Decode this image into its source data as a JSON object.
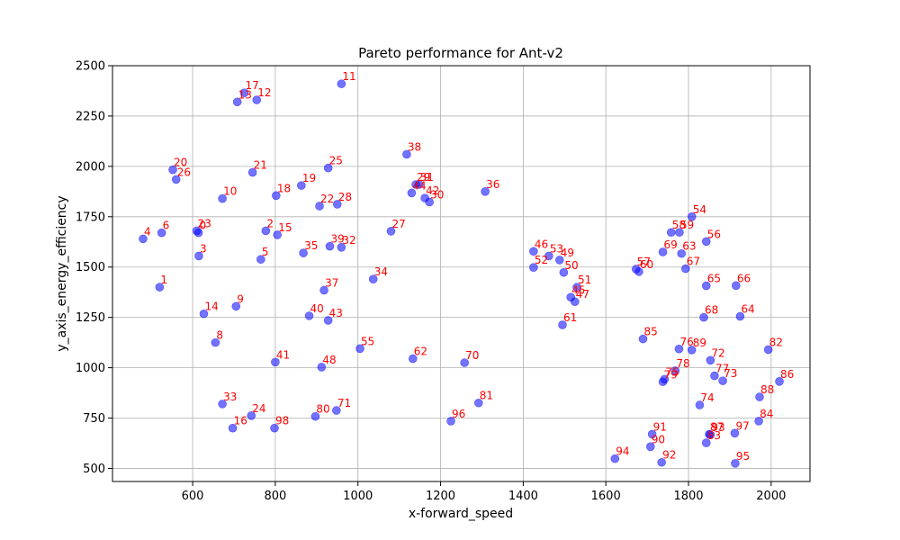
{
  "chart_data": {
    "type": "scatter",
    "title": "Pareto performance for Ant-v2",
    "xlabel": "x-forward_speed",
    "ylabel": "y_axis_energy_efficiency",
    "xlim": [
      406,
      2094
    ],
    "ylim": [
      435,
      2500
    ],
    "xticks": [
      600,
      800,
      1000,
      1200,
      1400,
      1600,
      1800,
      2000
    ],
    "yticks": [
      500,
      750,
      1000,
      1250,
      1500,
      1750,
      2000,
      2250,
      2500
    ],
    "grid": true,
    "point_color": "#0000ff",
    "label_color": "#ff0000",
    "points": [
      {
        "label": "0",
        "x": 614,
        "y": 1670
      },
      {
        "label": "1",
        "x": 520,
        "y": 1400
      },
      {
        "label": "2",
        "x": 777,
        "y": 1680
      },
      {
        "label": "3",
        "x": 615,
        "y": 1555
      },
      {
        "label": "4",
        "x": 480,
        "y": 1640
      },
      {
        "label": "5",
        "x": 765,
        "y": 1538
      },
      {
        "label": "6",
        "x": 525,
        "y": 1670
      },
      {
        "label": "8",
        "x": 655,
        "y": 1125
      },
      {
        "label": "9",
        "x": 705,
        "y": 1305
      },
      {
        "label": "10",
        "x": 672,
        "y": 1840
      },
      {
        "label": "11",
        "x": 960,
        "y": 2410
      },
      {
        "label": "12",
        "x": 755,
        "y": 2330
      },
      {
        "label": "13",
        "x": 708,
        "y": 2320
      },
      {
        "label": "14",
        "x": 627,
        "y": 1268
      },
      {
        "label": "15",
        "x": 805,
        "y": 1660
      },
      {
        "label": "16",
        "x": 697,
        "y": 700
      },
      {
        "label": "17",
        "x": 725,
        "y": 2365
      },
      {
        "label": "18",
        "x": 802,
        "y": 1855
      },
      {
        "label": "19",
        "x": 863,
        "y": 1905
      },
      {
        "label": "20",
        "x": 552,
        "y": 1983
      },
      {
        "label": "21",
        "x": 745,
        "y": 1970
      },
      {
        "label": "22",
        "x": 907,
        "y": 1803
      },
      {
        "label": "23",
        "x": 610,
        "y": 1680
      },
      {
        "label": "24",
        "x": 742,
        "y": 762
      },
      {
        "label": "25",
        "x": 928,
        "y": 1992
      },
      {
        "label": "26",
        "x": 560,
        "y": 1935
      },
      {
        "label": "27",
        "x": 1080,
        "y": 1678
      },
      {
        "label": "28",
        "x": 950,
        "y": 1812
      },
      {
        "label": "29",
        "x": 1140,
        "y": 1910
      },
      {
        "label": "30",
        "x": 1173,
        "y": 1823
      },
      {
        "label": "31",
        "x": 1148,
        "y": 1910
      },
      {
        "label": "32",
        "x": 960,
        "y": 1598
      },
      {
        "label": "33",
        "x": 672,
        "y": 820
      },
      {
        "label": "34",
        "x": 1037,
        "y": 1440
      },
      {
        "label": "35",
        "x": 868,
        "y": 1570
      },
      {
        "label": "36",
        "x": 1308,
        "y": 1875
      },
      {
        "label": "37",
        "x": 918,
        "y": 1385
      },
      {
        "label": "38",
        "x": 1118,
        "y": 2060
      },
      {
        "label": "39",
        "x": 932,
        "y": 1603
      },
      {
        "label": "40",
        "x": 882,
        "y": 1258
      },
      {
        "label": "41",
        "x": 800,
        "y": 1028
      },
      {
        "label": "42",
        "x": 1162,
        "y": 1843
      },
      {
        "label": "43",
        "x": 928,
        "y": 1235
      },
      {
        "label": "44",
        "x": 1130,
        "y": 1868
      },
      {
        "label": "45",
        "x": 1515,
        "y": 1350
      },
      {
        "label": "46",
        "x": 1425,
        "y": 1578
      },
      {
        "label": "47",
        "x": 1525,
        "y": 1328
      },
      {
        "label": "48",
        "x": 912,
        "y": 1003
      },
      {
        "label": "49",
        "x": 1488,
        "y": 1535
      },
      {
        "label": "50",
        "x": 1498,
        "y": 1473
      },
      {
        "label": "51",
        "x": 1530,
        "y": 1400
      },
      {
        "label": "52",
        "x": 1425,
        "y": 1498
      },
      {
        "label": "53",
        "x": 1462,
        "y": 1555
      },
      {
        "label": "54",
        "x": 1808,
        "y": 1750
      },
      {
        "label": "55",
        "x": 1005,
        "y": 1095
      },
      {
        "label": "56",
        "x": 1843,
        "y": 1627
      },
      {
        "label": "57",
        "x": 1673,
        "y": 1490
      },
      {
        "label": "58",
        "x": 1758,
        "y": 1672
      },
      {
        "label": "59",
        "x": 1778,
        "y": 1672
      },
      {
        "label": "60",
        "x": 1680,
        "y": 1477
      },
      {
        "label": "61",
        "x": 1495,
        "y": 1213
      },
      {
        "label": "62",
        "x": 1133,
        "y": 1045
      },
      {
        "label": "63",
        "x": 1783,
        "y": 1567
      },
      {
        "label": "64",
        "x": 1925,
        "y": 1255
      },
      {
        "label": "65",
        "x": 1843,
        "y": 1407
      },
      {
        "label": "66",
        "x": 1915,
        "y": 1408
      },
      {
        "label": "67",
        "x": 1793,
        "y": 1492
      },
      {
        "label": "68",
        "x": 1837,
        "y": 1250
      },
      {
        "label": "69",
        "x": 1738,
        "y": 1575
      },
      {
        "label": "70",
        "x": 1258,
        "y": 1025
      },
      {
        "label": "71",
        "x": 948,
        "y": 788
      },
      {
        "label": "72",
        "x": 1853,
        "y": 1037
      },
      {
        "label": "73",
        "x": 1883,
        "y": 935
      },
      {
        "label": "74",
        "x": 1827,
        "y": 815
      },
      {
        "label": "75",
        "x": 1742,
        "y": 943
      },
      {
        "label": "76",
        "x": 1777,
        "y": 1093
      },
      {
        "label": "77",
        "x": 1863,
        "y": 960
      },
      {
        "label": "78",
        "x": 1768,
        "y": 985
      },
      {
        "label": "79",
        "x": 1738,
        "y": 930
      },
      {
        "label": "80",
        "x": 897,
        "y": 758
      },
      {
        "label": "81",
        "x": 1292,
        "y": 825
      },
      {
        "label": "82",
        "x": 1993,
        "y": 1090
      },
      {
        "label": "83",
        "x": 1843,
        "y": 627
      },
      {
        "label": "84",
        "x": 1970,
        "y": 735
      },
      {
        "label": "85",
        "x": 1690,
        "y": 1143
      },
      {
        "label": "86",
        "x": 2020,
        "y": 932
      },
      {
        "label": "87",
        "x": 1850,
        "y": 670
      },
      {
        "label": "88",
        "x": 1972,
        "y": 855
      },
      {
        "label": "89",
        "x": 1808,
        "y": 1088
      },
      {
        "label": "90",
        "x": 1708,
        "y": 608
      },
      {
        "label": "91",
        "x": 1712,
        "y": 670
      },
      {
        "label": "92",
        "x": 1735,
        "y": 530
      },
      {
        "label": "93",
        "x": 1853,
        "y": 667
      },
      {
        "label": "94",
        "x": 1622,
        "y": 548
      },
      {
        "label": "95",
        "x": 1913,
        "y": 525
      },
      {
        "label": "96",
        "x": 1225,
        "y": 735
      },
      {
        "label": "97",
        "x": 1912,
        "y": 675
      },
      {
        "label": "98",
        "x": 798,
        "y": 700
      }
    ]
  }
}
